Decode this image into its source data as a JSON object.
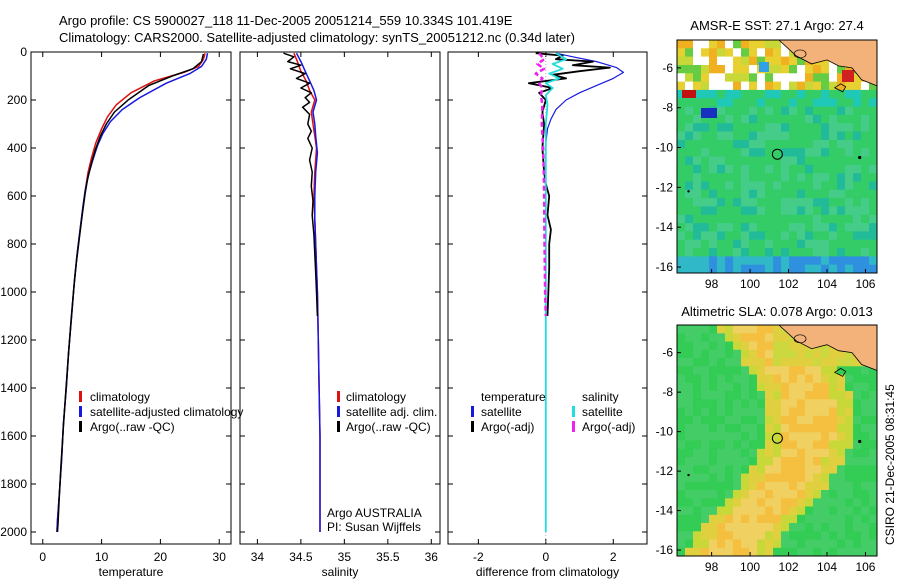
{
  "header": {
    "line1": "Argo profile: CS 5900027_118 11-Dec-2005 20051214_559 10.334S 101.419E",
    "line2": "Climatology: CARS2000. Satellite-adjusted climatology: synTS_20051212.nc (0.34d later)"
  },
  "side_stamp": "CSIRO 21-Dec-2005 08:31:45",
  "colors": {
    "climatology": "#e01010",
    "satellite": "#1818e0",
    "argo": "#000000",
    "sat_salinity": "#22dddd",
    "argo_adj_salinity": "#ee22ee",
    "land": "#f2b27a"
  },
  "chart_data": [
    {
      "id": "temperature",
      "type": "line",
      "xlabel": "temperature",
      "ylabel": "",
      "xlim": [
        -2,
        32
      ],
      "ylim": [
        2050,
        0
      ],
      "xticks": [
        "0",
        "10",
        "20",
        "30"
      ],
      "xtick_values": [
        0,
        10,
        20,
        30
      ],
      "yticks": [
        "0",
        "200",
        "400",
        "600",
        "800",
        "1000",
        "1200",
        "1400",
        "1600",
        "1800",
        "2000"
      ],
      "ytick_values": [
        0,
        200,
        400,
        600,
        800,
        1000,
        1200,
        1400,
        1600,
        1800,
        2000
      ],
      "legend": [
        "climatology",
        "satellite-adjusted climatology",
        "Argo(..raw -QC)"
      ],
      "series": [
        {
          "name": "climatology",
          "color": "#e01010",
          "width": 1.5,
          "points": [
            [
              27.6,
              5
            ],
            [
              27.3,
              30
            ],
            [
              26.5,
              60
            ],
            [
              24.0,
              85
            ],
            [
              19.0,
              120
            ],
            [
              15.0,
              170
            ],
            [
              12.5,
              220
            ],
            [
              11.0,
              270
            ],
            [
              10.0,
              320
            ],
            [
              9.0,
              380
            ],
            [
              8.3,
              440
            ],
            [
              7.7,
              500
            ],
            [
              7.2,
              580
            ],
            [
              6.8,
              650
            ],
            [
              6.3,
              750
            ],
            [
              5.8,
              850
            ],
            [
              5.4,
              950
            ],
            [
              4.9,
              1100
            ],
            [
              4.4,
              1250
            ],
            [
              4.0,
              1400
            ],
            [
              3.5,
              1550
            ],
            [
              3.2,
              1700
            ],
            [
              2.8,
              1850
            ],
            [
              2.5,
              1950
            ],
            [
              2.4,
              2000
            ]
          ]
        },
        {
          "name": "satellite-adjusted climatology",
          "color": "#1818e0",
          "width": 1.5,
          "points": [
            [
              28.0,
              5
            ],
            [
              27.8,
              30
            ],
            [
              27.0,
              60
            ],
            [
              25.0,
              90
            ],
            [
              21.0,
              130
            ],
            [
              16.5,
              190
            ],
            [
              13.5,
              240
            ],
            [
              11.5,
              290
            ],
            [
              10.2,
              340
            ],
            [
              9.3,
              390
            ],
            [
              8.5,
              450
            ],
            [
              7.8,
              510
            ],
            [
              7.2,
              580
            ],
            [
              6.8,
              650
            ],
            [
              6.3,
              750
            ],
            [
              5.8,
              850
            ],
            [
              5.4,
              950
            ],
            [
              4.9,
              1100
            ],
            [
              4.4,
              1250
            ],
            [
              4.0,
              1400
            ],
            [
              3.5,
              1550
            ],
            [
              3.2,
              1700
            ],
            [
              2.8,
              1850
            ],
            [
              2.5,
              1950
            ],
            [
              2.4,
              2000
            ]
          ]
        },
        {
          "name": "Argo(..raw -QC)",
          "color": "#000000",
          "width": 1.5,
          "points": [
            [
              27.3,
              8
            ],
            [
              27.0,
              40
            ],
            [
              25.5,
              70
            ],
            [
              22.0,
              100
            ],
            [
              18.0,
              140
            ],
            [
              14.5,
              200
            ],
            [
              12.2,
              250
            ],
            [
              10.8,
              300
            ],
            [
              9.8,
              350
            ],
            [
              8.9,
              410
            ],
            [
              8.2,
              470
            ],
            [
              7.6,
              530
            ],
            [
              7.2,
              590
            ],
            [
              6.7,
              680
            ],
            [
              6.2,
              780
            ],
            [
              5.7,
              880
            ],
            [
              5.3,
              980
            ],
            [
              4.8,
              1120
            ],
            [
              4.3,
              1280
            ],
            [
              3.9,
              1420
            ],
            [
              3.5,
              1560
            ],
            [
              3.1,
              1720
            ],
            [
              2.8,
              1860
            ],
            [
              2.6,
              1960
            ],
            [
              2.5,
              2000
            ]
          ]
        }
      ]
    },
    {
      "id": "salinity",
      "type": "line",
      "xlabel": "salinity",
      "ylabel": "",
      "xlim": [
        33.8,
        36.1
      ],
      "ylim": [
        2050,
        0
      ],
      "xticks": [
        "34",
        "34.5",
        "35",
        "35.5",
        "36"
      ],
      "xtick_values": [
        34,
        34.5,
        35,
        35.5,
        36
      ],
      "legend": [
        "climatology",
        "satellite adj. clim.",
        "Argo(..raw -QC)"
      ],
      "annotations": [
        "Argo AUSTRALIA",
        "PI: Susan Wijffels"
      ],
      "series": [
        {
          "name": "climatology",
          "color": "#e01010",
          "width": 1.5,
          "points": [
            [
              34.42,
              5
            ],
            [
              34.46,
              40
            ],
            [
              34.5,
              80
            ],
            [
              34.56,
              120
            ],
            [
              34.6,
              160
            ],
            [
              34.66,
              200
            ],
            [
              34.62,
              250
            ],
            [
              34.64,
              300
            ],
            [
              34.66,
              350
            ],
            [
              34.68,
              400
            ],
            [
              34.66,
              500
            ],
            [
              34.65,
              600
            ],
            [
              34.66,
              700
            ],
            [
              34.67,
              800
            ],
            [
              34.68,
              900
            ],
            [
              34.69,
              1000
            ],
            [
              34.7,
              1200
            ],
            [
              34.71,
              1400
            ],
            [
              34.72,
              1600
            ],
            [
              34.72,
              1800
            ],
            [
              34.72,
              2000
            ]
          ]
        },
        {
          "name": "satellite adj. clim.",
          "color": "#1818e0",
          "width": 1.5,
          "points": [
            [
              34.45,
              5
            ],
            [
              34.5,
              40
            ],
            [
              34.55,
              80
            ],
            [
              34.6,
              120
            ],
            [
              34.65,
              160
            ],
            [
              34.68,
              200
            ],
            [
              34.64,
              250
            ],
            [
              34.66,
              300
            ],
            [
              34.67,
              350
            ],
            [
              34.69,
              420
            ],
            [
              34.67,
              500
            ],
            [
              34.66,
              600
            ],
            [
              34.66,
              700
            ],
            [
              34.67,
              800
            ],
            [
              34.68,
              900
            ],
            [
              34.69,
              1000
            ],
            [
              34.7,
              1200
            ],
            [
              34.71,
              1400
            ],
            [
              34.72,
              1600
            ],
            [
              34.72,
              1800
            ],
            [
              34.72,
              2000
            ]
          ]
        },
        {
          "name": "Argo(..raw -QC)",
          "color": "#000000",
          "width": 1.5,
          "points": [
            [
              34.3,
              5
            ],
            [
              34.42,
              20
            ],
            [
              34.35,
              40
            ],
            [
              34.5,
              55
            ],
            [
              34.38,
              70
            ],
            [
              34.55,
              90
            ],
            [
              34.45,
              110
            ],
            [
              34.6,
              130
            ],
            [
              34.5,
              150
            ],
            [
              34.62,
              170
            ],
            [
              34.55,
              190
            ],
            [
              34.6,
              210
            ],
            [
              34.52,
              230
            ],
            [
              34.6,
              260
            ],
            [
              34.58,
              300
            ],
            [
              34.62,
              330
            ],
            [
              34.58,
              360
            ],
            [
              34.63,
              400
            ],
            [
              34.6,
              450
            ],
            [
              34.63,
              500
            ],
            [
              34.62,
              560
            ],
            [
              34.64,
              620
            ],
            [
              34.63,
              680
            ],
            [
              34.65,
              760
            ],
            [
              34.66,
              840
            ],
            [
              34.67,
              920
            ],
            [
              34.68,
              1000
            ],
            [
              34.69,
              1100
            ]
          ]
        }
      ]
    },
    {
      "id": "difference",
      "type": "line",
      "xlabel": "difference from climatology",
      "ylabel": "",
      "xlim": [
        -2.9,
        3.0
      ],
      "ylim": [
        2050,
        0
      ],
      "xticks": [
        "-2",
        "0",
        "2"
      ],
      "xtick_values": [
        -2,
        0,
        2
      ],
      "legend_left": [
        "temperature",
        "satellite",
        "Argo(-adj)"
      ],
      "legend_right": [
        "salinity",
        "satellite",
        "Argo(-adj)"
      ],
      "series": [
        {
          "name": "temperature satellite",
          "color": "#1818e0",
          "width": 1.2,
          "points": [
            [
              0.3,
              5
            ],
            [
              0.8,
              20
            ],
            [
              1.5,
              40
            ],
            [
              2.1,
              65
            ],
            [
              2.3,
              85
            ],
            [
              2.0,
              110
            ],
            [
              1.5,
              140
            ],
            [
              1.0,
              170
            ],
            [
              0.6,
              200
            ],
            [
              0.3,
              240
            ],
            [
              0.15,
              280
            ],
            [
              0.05,
              320
            ],
            [
              0.0,
              380
            ],
            [
              0.0,
              2000
            ]
          ]
        },
        {
          "name": "temperature Argo(-adj)",
          "color": "#000000",
          "width": 1.8,
          "points": [
            [
              -0.3,
              5
            ],
            [
              0.5,
              15
            ],
            [
              0.3,
              30
            ],
            [
              1.4,
              40
            ],
            [
              0.8,
              55
            ],
            [
              1.9,
              65
            ],
            [
              1.0,
              80
            ],
            [
              0.2,
              95
            ],
            [
              0.6,
              110
            ],
            [
              -0.5,
              130
            ],
            [
              0.2,
              150
            ],
            [
              -0.2,
              170
            ],
            [
              0.0,
              200
            ],
            [
              -0.1,
              250
            ],
            [
              -0.05,
              300
            ],
            [
              -0.1,
              400
            ],
            [
              -0.05,
              500
            ],
            [
              0.0,
              550
            ],
            [
              0.1,
              600
            ],
            [
              0.05,
              680
            ],
            [
              0.15,
              740
            ],
            [
              0.1,
              800
            ],
            [
              0.1,
              900
            ],
            [
              0.05,
              1100
            ]
          ]
        },
        {
          "name": "salinity satellite",
          "color": "#22dddd",
          "width": 1.8,
          "points": [
            [
              0.3,
              5
            ],
            [
              0.6,
              30
            ],
            [
              0.2,
              50
            ],
            [
              0.5,
              70
            ],
            [
              0.1,
              90
            ],
            [
              0.4,
              110
            ],
            [
              0.0,
              130
            ],
            [
              0.2,
              150
            ],
            [
              0.0,
              180
            ],
            [
              0.05,
              220
            ],
            [
              0.0,
              300
            ],
            [
              0.0,
              2000
            ]
          ]
        },
        {
          "name": "salinity Argo(-adj)",
          "color": "#ee22ee",
          "width": 2.5,
          "dashed": true,
          "points": [
            [
              -0.2,
              5
            ],
            [
              -0.05,
              30
            ],
            [
              -0.25,
              50
            ],
            [
              -0.05,
              70
            ],
            [
              -0.3,
              90
            ],
            [
              -0.1,
              110
            ],
            [
              -0.2,
              130
            ],
            [
              -0.1,
              150
            ],
            [
              -0.15,
              180
            ],
            [
              -0.1,
              220
            ],
            [
              -0.12,
              300
            ],
            [
              -0.08,
              400
            ],
            [
              -0.06,
              500
            ],
            [
              -0.05,
              600
            ],
            [
              -0.04,
              800
            ],
            [
              -0.02,
              1000
            ],
            [
              0.0,
              1100
            ]
          ]
        }
      ]
    },
    {
      "id": "sst_map",
      "type": "heatmap",
      "title": "AMSR-E SST: 27.1 Argo: 27.4",
      "xlim": [
        96.2,
        106.6
      ],
      "ylim": [
        -16.3,
        -4.6
      ],
      "xticks": [
        "98",
        "100",
        "102",
        "104",
        "106"
      ],
      "xtick_values": [
        98,
        100,
        102,
        104,
        106
      ],
      "yticks": [
        "-6",
        "-8",
        "-10",
        "-12",
        "-14",
        "-16"
      ],
      "ytick_values": [
        -6,
        -8,
        -10,
        -12,
        -14,
        -16
      ],
      "marker": {
        "lon": 101.419,
        "lat": -10.334
      }
    },
    {
      "id": "sla_map",
      "type": "heatmap",
      "title": "Altimetric SLA: 0.078 Argo: 0.013",
      "xlim": [
        96.2,
        106.6
      ],
      "ylim": [
        -16.3,
        -4.6
      ],
      "xticks": [
        "98",
        "100",
        "102",
        "104",
        "106"
      ],
      "xtick_values": [
        98,
        100,
        102,
        104,
        106
      ],
      "yticks": [
        "-6",
        "-8",
        "-10",
        "-12",
        "-14",
        "-16"
      ],
      "ytick_values": [
        -6,
        -8,
        -10,
        -12,
        -14,
        -16
      ],
      "marker": {
        "lon": 101.419,
        "lat": -10.334
      }
    }
  ]
}
